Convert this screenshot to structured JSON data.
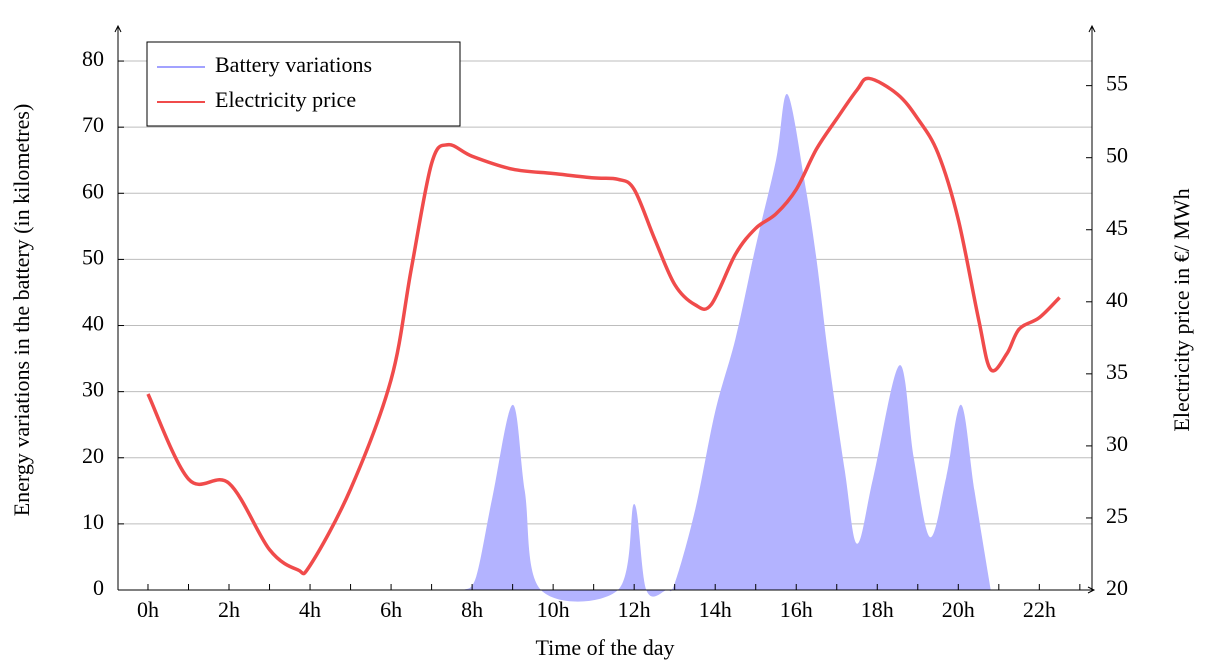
{
  "chart_data": {
    "type": "line",
    "xlabel": "Time of the day",
    "ylabel": "Energy variations in the battery (in kilometres)",
    "y2label": "Electricity price in €/ MWh",
    "xlim": [
      -0.74,
      23.3
    ],
    "ylim": [
      0,
      85
    ],
    "y2lim": [
      20,
      59
    ],
    "xticks": [
      {
        "value": 0,
        "label": "0h"
      },
      {
        "value": 2,
        "label": "2h"
      },
      {
        "value": 4,
        "label": "4h"
      },
      {
        "value": 6,
        "label": "6h"
      },
      {
        "value": 8,
        "label": "8h"
      },
      {
        "value": 10,
        "label": "10h"
      },
      {
        "value": 12,
        "label": "12h"
      },
      {
        "value": 14,
        "label": "14h"
      },
      {
        "value": 16,
        "label": "16h"
      },
      {
        "value": 18,
        "label": "18h"
      },
      {
        "value": 20,
        "label": "20h"
      },
      {
        "value": 22,
        "label": "22h"
      }
    ],
    "xminorticks": [
      1,
      3,
      5,
      7,
      9,
      11,
      13,
      15,
      17,
      19,
      21,
      23
    ],
    "yticks": [
      0,
      10,
      20,
      30,
      40,
      50,
      60,
      70,
      80
    ],
    "y2ticks": [
      20,
      25,
      30,
      35,
      40,
      45,
      50,
      55
    ],
    "grid": true,
    "legend": "upper left",
    "series": [
      {
        "name": "Battery variations",
        "type": "area",
        "color": "#b3b3ff",
        "line_color": "#6b6bff",
        "x": [
          7.8,
          8.1,
          8.5,
          9.0,
          9.3,
          9.7,
          11.6,
          12.0,
          12.3,
          12.8,
          13.0,
          13.5,
          14.0,
          14.5,
          15.0,
          15.5,
          15.78,
          16.2,
          16.5,
          16.8,
          17.2,
          17.5,
          17.9,
          18.55,
          18.9,
          19.3,
          19.7,
          20.07,
          20.4,
          20.8
        ],
        "values": [
          0,
          2,
          14,
          28,
          15,
          0,
          0,
          13,
          0,
          0,
          1,
          12,
          27,
          38,
          52,
          65,
          75,
          62,
          50,
          35,
          18,
          7,
          17,
          34,
          20,
          8,
          17,
          28,
          15,
          0
        ]
      },
      {
        "name": "Electricity price",
        "type": "line",
        "axis": "y2",
        "color": "#f04b4b",
        "x": [
          0,
          1,
          2,
          3,
          3.7,
          4,
          5,
          6,
          6.5,
          7,
          7.4,
          8,
          9,
          10,
          11,
          11.6,
          12,
          12.5,
          13,
          13.5,
          13.9,
          14.5,
          15,
          15.5,
          16,
          16.5,
          17,
          17.5,
          17.8,
          18.5,
          19,
          19.5,
          20,
          20.5,
          20.8,
          21.2,
          21.5,
          22,
          22.5
        ],
        "values": [
          33.6,
          27.7,
          27.4,
          22.8,
          21.4,
          21.7,
          27,
          34.6,
          42.3,
          49.6,
          50.9,
          50.1,
          49.2,
          48.9,
          48.6,
          48.5,
          47.8,
          44.4,
          41.2,
          39.8,
          39.8,
          43.3,
          45.1,
          46.1,
          47.8,
          50.6,
          52.7,
          54.7,
          55.5,
          54.4,
          52.7,
          50.3,
          45.7,
          38.8,
          35.3,
          36.4,
          38.1,
          38.9,
          40.3
        ]
      }
    ]
  }
}
